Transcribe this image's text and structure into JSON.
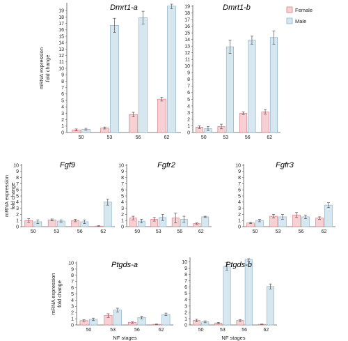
{
  "colors": {
    "female_fill": "#f7d0d3",
    "female_stroke": "#d9808a",
    "male_fill": "#d6e7f0",
    "male_stroke": "#8fb3c8",
    "axis": "#555555"
  },
  "legend": {
    "female": "Female",
    "male": "Male",
    "position": "top-right"
  },
  "chart_data": [
    {
      "type": "bar",
      "title": "Dmrt1-a",
      "ylabel": [
        "mRNA expression",
        "fold change"
      ],
      "xlabel": "",
      "categories": [
        "50",
        "53",
        "56",
        "62"
      ],
      "ylim": [
        0,
        20
      ],
      "yticks": [
        0,
        1,
        2,
        3,
        4,
        5,
        6,
        7,
        8,
        9,
        10,
        11,
        12,
        13,
        14,
        15,
        16,
        17,
        18,
        19
      ],
      "series": [
        {
          "name": "Female",
          "values": [
            0.4,
            0.7,
            2.8,
            5.2
          ],
          "errors": [
            0.15,
            0.15,
            0.35,
            0.3
          ]
        },
        {
          "name": "Male",
          "values": [
            0.5,
            16.7,
            17.9,
            19.7
          ],
          "errors": [
            0.15,
            1.1,
            1.0,
            0.4
          ]
        }
      ]
    },
    {
      "type": "bar",
      "title": "Dmrt1-b",
      "ylabel": [],
      "xlabel": "",
      "categories": [
        "50",
        "53",
        "56",
        "62"
      ],
      "ylim": [
        0,
        19
      ],
      "yticks": [
        0,
        1,
        2,
        3,
        4,
        5,
        6,
        7,
        8,
        9,
        10,
        11,
        12,
        13,
        14,
        15,
        16,
        17,
        18,
        19
      ],
      "series": [
        {
          "name": "Female",
          "values": [
            0.8,
            0.9,
            2.9,
            3.1
          ],
          "errors": [
            0.2,
            0.35,
            0.2,
            0.35
          ]
        },
        {
          "name": "Male",
          "values": [
            0.6,
            12.9,
            13.9,
            14.3
          ],
          "errors": [
            0.3,
            1.0,
            0.6,
            1.0
          ]
        }
      ]
    },
    {
      "type": "bar",
      "title": "Fgf9",
      "ylabel": [
        "mRNA expression",
        "fold change"
      ],
      "xlabel": "",
      "categories": [
        "50",
        "53",
        "56",
        "62"
      ],
      "ylim": [
        0,
        10
      ],
      "yticks": [
        0,
        1,
        2,
        3,
        4,
        5,
        6,
        7,
        8,
        9,
        10
      ],
      "series": [
        {
          "name": "Female",
          "values": [
            1.0,
            1.1,
            1.0,
            0.1
          ],
          "errors": [
            0.3,
            0.15,
            0.2,
            0.05
          ]
        },
        {
          "name": "Male",
          "values": [
            0.8,
            0.9,
            0.8,
            4.0
          ],
          "errors": [
            0.3,
            0.2,
            0.3,
            0.5
          ]
        }
      ]
    },
    {
      "type": "bar",
      "title": "Fgfr2",
      "ylabel": [],
      "xlabel": "",
      "categories": [
        "50",
        "53",
        "56",
        "62"
      ],
      "ylim": [
        0,
        10
      ],
      "yticks": [
        0,
        1,
        2,
        3,
        4,
        5,
        6,
        7,
        8,
        9,
        10
      ],
      "series": [
        {
          "name": "Female",
          "values": [
            1.4,
            1.2,
            1.4,
            0.5
          ],
          "errors": [
            0.3,
            0.3,
            0.8,
            0.1
          ]
        },
        {
          "name": "Male",
          "values": [
            0.9,
            1.5,
            1.2,
            1.6
          ],
          "errors": [
            0.3,
            0.5,
            0.5,
            0.1
          ]
        }
      ]
    },
    {
      "type": "bar",
      "title": "Fgfr3",
      "ylabel": [],
      "xlabel": "",
      "categories": [
        "50",
        "53",
        "56",
        "62"
      ],
      "ylim": [
        0,
        10
      ],
      "yticks": [
        0,
        1,
        2,
        3,
        4,
        5,
        6,
        7,
        8,
        9,
        10
      ],
      "series": [
        {
          "name": "Female",
          "values": [
            0.6,
            1.7,
            1.9,
            1.4
          ],
          "errors": [
            0.1,
            0.3,
            0.4,
            0.2
          ]
        },
        {
          "name": "Male",
          "values": [
            1.0,
            1.6,
            1.6,
            3.5
          ],
          "errors": [
            0.2,
            0.4,
            0.3,
            0.4
          ]
        }
      ]
    },
    {
      "type": "bar",
      "title": "Ptgds-a",
      "ylabel": [
        "mRNA expression",
        "fold change"
      ],
      "xlabel": "NF stages",
      "categories": [
        "50",
        "53",
        "56",
        "62"
      ],
      "ylim": [
        0,
        10
      ],
      "yticks": [
        0,
        1,
        2,
        3,
        4,
        5,
        6,
        7,
        8,
        9,
        10
      ],
      "series": [
        {
          "name": "Female",
          "values": [
            0.7,
            1.5,
            0.4,
            0.1
          ],
          "errors": [
            0.15,
            0.3,
            0.1,
            0.05
          ]
        },
        {
          "name": "Male",
          "values": [
            0.9,
            2.4,
            1.2,
            1.7
          ],
          "errors": [
            0.2,
            0.3,
            0.2,
            0.2
          ]
        }
      ]
    },
    {
      "type": "bar",
      "title": "Ptgds-b",
      "ylabel": [],
      "xlabel": "NF stages",
      "categories": [
        "50",
        "53",
        "56",
        "62"
      ],
      "ylim": [
        0,
        10.5
      ],
      "yticks": [
        0,
        1,
        2,
        3,
        4,
        5,
        6,
        7,
        8,
        9,
        10
      ],
      "series": [
        {
          "name": "Female",
          "values": [
            0.7,
            0.3,
            0.7,
            0.1
          ],
          "errors": [
            0.2,
            0.1,
            0.15,
            0.05
          ]
        },
        {
          "name": "Male",
          "values": [
            0.5,
            9.3,
            10.4,
            6.1
          ],
          "errors": [
            0.15,
            0.6,
            0.3,
            0.4
          ]
        }
      ]
    }
  ]
}
